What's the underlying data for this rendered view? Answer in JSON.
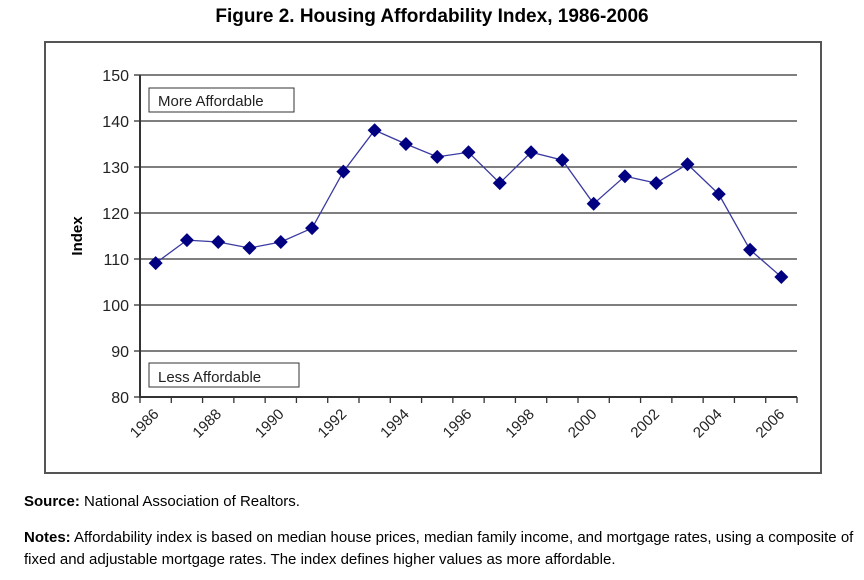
{
  "title": "Figure 2. Housing Affordability Index, 1986-2006",
  "chart_data": {
    "type": "line",
    "title": "Figure 2. Housing Affordability Index, 1986-2006",
    "xlabel": "",
    "ylabel": "Index",
    "ylim": [
      80,
      150
    ],
    "yticks": [
      80,
      90,
      100,
      110,
      120,
      130,
      140,
      150
    ],
    "xtick_labels": [
      "1986",
      "1988",
      "1990",
      "1992",
      "1994",
      "1996",
      "1998",
      "2000",
      "2002",
      "2004",
      "2006"
    ],
    "grid": true,
    "x": [
      1986,
      1987,
      1988,
      1989,
      1990,
      1991,
      1992,
      1993,
      1994,
      1995,
      1996,
      1997,
      1998,
      1999,
      2000,
      2001,
      2002,
      2003,
      2004,
      2005,
      2006
    ],
    "series": [
      {
        "name": "Housing Affordability Index",
        "color": "#000080",
        "values": [
          109.1,
          114.1,
          113.7,
          112.4,
          113.7,
          116.7,
          129.0,
          138.0,
          135.0,
          132.2,
          133.2,
          126.5,
          133.2,
          131.5,
          122.0,
          128.0,
          126.5,
          130.6,
          124.1,
          112.0,
          106.1
        ]
      }
    ],
    "annotations": [
      "More Affordable",
      "Less Affordable"
    ]
  },
  "source_label": "Source:",
  "source_text": " National Association of Realtors.",
  "notes_label": "Notes:",
  "notes_text": " Affordability index is based on median house prices, median family income, and mortgage rates, using a composite of fixed and adjustable mortgage rates. The index defines higher values as more affordable."
}
